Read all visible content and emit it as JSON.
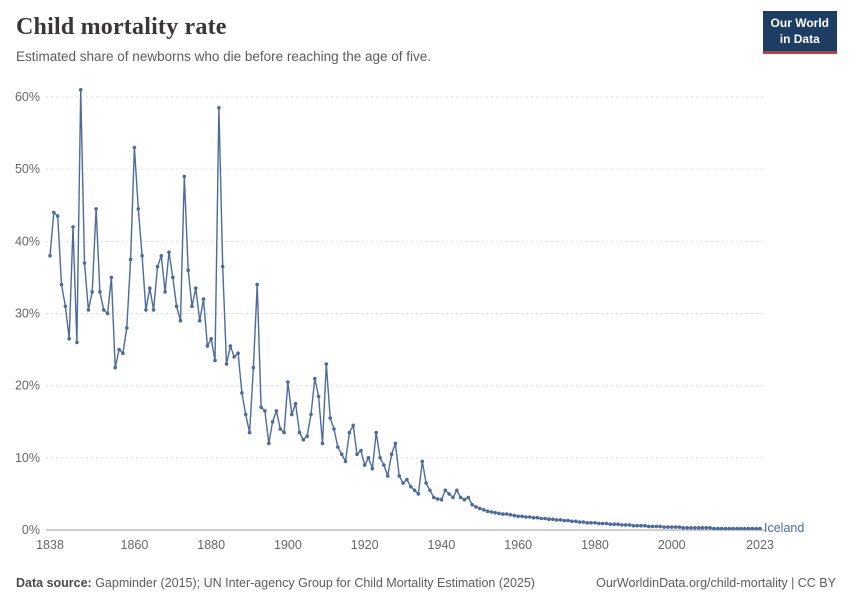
{
  "header": {
    "title": "Child mortality rate",
    "subtitle": "Estimated share of newborns who die before reaching the age of five."
  },
  "logo": {
    "line1": "Our World",
    "line2": "in Data"
  },
  "chart_data": {
    "type": "line",
    "title": "Child mortality rate",
    "unit": "%",
    "grid": true,
    "line_color": "#4c6a9c",
    "xlim": [
      1838,
      2023
    ],
    "ylim": [
      0,
      60
    ],
    "x_ticks": [
      1838,
      1860,
      1880,
      1900,
      1920,
      1940,
      1960,
      1980,
      2000,
      2023
    ],
    "y_ticks": [
      0,
      10,
      20,
      30,
      40,
      50,
      60
    ],
    "x_start": 1838,
    "x_step": 1,
    "series": [
      {
        "name": "Iceland",
        "values": [
          38,
          44,
          43.5,
          34,
          31,
          26.5,
          42,
          26,
          61,
          37,
          30.5,
          33,
          44.5,
          33,
          30.5,
          30,
          35,
          22.5,
          25,
          24.5,
          28,
          37.5,
          53,
          44.5,
          38,
          30.5,
          33.5,
          30.5,
          36.5,
          38,
          33,
          38.5,
          35,
          31,
          29,
          49,
          36,
          31,
          33.5,
          29,
          32,
          25.5,
          26.5,
          23.5,
          58.5,
          36.5,
          23,
          25.5,
          24,
          24.5,
          19,
          16,
          13.5,
          22.5,
          34,
          17,
          16.5,
          12,
          15,
          16.5,
          14,
          13.5,
          20.5,
          16,
          17.5,
          13.5,
          12.5,
          13,
          16,
          21,
          18.5,
          12,
          23,
          15.5,
          14,
          11.5,
          10.5,
          9.5,
          13.5,
          14.5,
          10.5,
          11,
          9,
          10,
          8.5,
          13.5,
          10,
          9,
          7.5,
          10.5,
          12,
          7.5,
          6.5,
          7,
          6,
          5.5,
          5,
          9.5,
          6.5,
          5.5,
          4.5,
          4.3,
          4.2,
          5.5,
          5,
          4.5,
          5.5,
          4.5,
          4.2,
          4.5,
          3.5,
          3.2,
          3,
          2.8,
          2.6,
          2.5,
          2.4,
          2.3,
          2.2,
          2.2,
          2.1,
          2,
          1.9,
          1.9,
          1.8,
          1.8,
          1.7,
          1.7,
          1.6,
          1.6,
          1.5,
          1.5,
          1.4,
          1.4,
          1.3,
          1.3,
          1.2,
          1.2,
          1.1,
          1.1,
          1,
          1,
          1,
          0.9,
          0.9,
          0.9,
          0.8,
          0.8,
          0.8,
          0.7,
          0.7,
          0.7,
          0.6,
          0.6,
          0.6,
          0.6,
          0.5,
          0.5,
          0.5,
          0.5,
          0.4,
          0.4,
          0.4,
          0.4,
          0.4,
          0.3,
          0.3,
          0.3,
          0.3,
          0.3,
          0.3,
          0.3,
          0.3,
          0.2,
          0.2,
          0.2,
          0.2,
          0.2,
          0.2,
          0.2,
          0.2,
          0.2,
          0.2,
          0.2,
          0.2,
          0.2
        ]
      }
    ]
  },
  "footer": {
    "source_prefix": "Data source:",
    "source_text": " Gapminder (2015); UN Inter-agency Group for Child Mortality Estimation (2025)",
    "link_text": "OurWorldinData.org/child-mortality | CC BY"
  }
}
